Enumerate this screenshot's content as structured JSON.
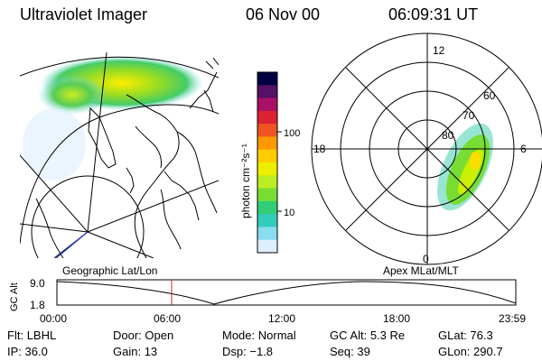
{
  "header": {
    "title": "Ultraviolet Imager",
    "date": "06 Nov 00",
    "time": "06:09:31 UT"
  },
  "colorbar": {
    "label": "photon cm⁻²s⁻¹",
    "ticks": [
      "100",
      "10"
    ],
    "colors": [
      "#000044",
      "#551166",
      "#aa1166",
      "#dd2233",
      "#ee5522",
      "#ff9900",
      "#ffcc00",
      "#eeee00",
      "#bbee22",
      "#77dd33",
      "#33cc77",
      "#33ccbb",
      "#88ddee",
      "#ddeeff"
    ]
  },
  "polar_plot": {
    "labels": {
      "top": "12",
      "left": "18",
      "right": "6",
      "bottom": "0"
    },
    "lat_labels": [
      "60",
      "70",
      "80"
    ]
  },
  "timeline": {
    "left_title": "Geographic Lat/Lon",
    "right_title": "Apex MLat/MLT",
    "yaxis_label": "GC Alt",
    "y_ticks": [
      "9.0",
      "1.8"
    ],
    "x_ticks": [
      "00:00",
      "06:00",
      "12:00",
      "18:00",
      "23:59"
    ],
    "current_marker": "06:09"
  },
  "info": {
    "row1": [
      {
        "label": "Flt:",
        "value": "LBHL"
      },
      {
        "label": "Door:",
        "value": "Open"
      },
      {
        "label": "Mode:",
        "value": "Normal"
      },
      {
        "label": "GC Alt:",
        "value": "5.3 Re"
      },
      {
        "label": "GLat:",
        "value": "76.3"
      }
    ],
    "row2": [
      {
        "label": "IP:",
        "value": "36.0"
      },
      {
        "label": "Gain:",
        "value": "13"
      },
      {
        "label": "Dsp:",
        "value": "−1.8"
      },
      {
        "label": "Seq:",
        "value": "39"
      },
      {
        "label": "GLon:",
        "value": "290.7"
      }
    ]
  }
}
